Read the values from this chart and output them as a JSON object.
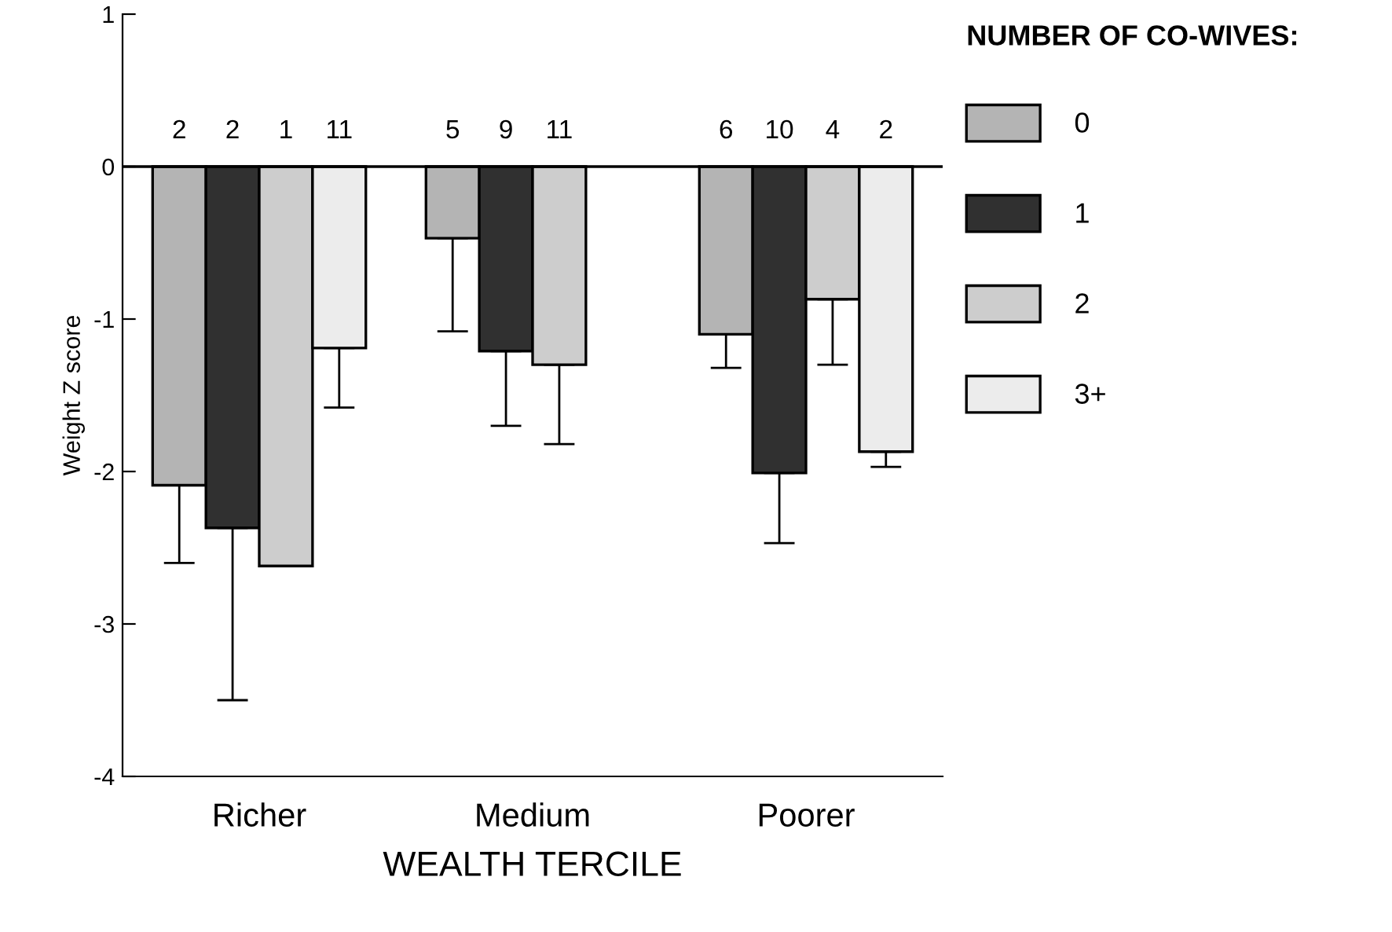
{
  "chart_data": {
    "type": "bar",
    "xlabel": "WEALTH TERCILE",
    "ylabel": "Weight Z score",
    "legend_title": "NUMBER OF CO-WIVES:",
    "categories": [
      "Richer",
      "Medium",
      "Poorer"
    ],
    "series": [
      {
        "name": "0",
        "color": "#b4b4b4",
        "values": [
          -2.09,
          -0.47,
          -1.1
        ],
        "errors": [
          [
            -2.6,
            -2.09
          ],
          [
            -1.08,
            -0.47
          ],
          [
            -1.32,
            -1.1
          ]
        ]
      },
      {
        "name": "1",
        "color": "#303030",
        "values": [
          -2.37,
          -1.21,
          -2.01
        ],
        "errors": [
          [
            -3.5,
            -2.37
          ],
          [
            -1.7,
            -1.21
          ],
          [
            -2.47,
            -2.01
          ]
        ]
      },
      {
        "name": "2",
        "color": "#cdcdcd",
        "values": [
          -2.62,
          -1.3,
          -0.87
        ],
        "errors": [
          null,
          [
            -1.82,
            -1.3
          ],
          [
            -1.3,
            -0.87
          ]
        ]
      },
      {
        "name": "3+",
        "color": "#ececec",
        "values": [
          -1.19,
          null,
          -1.87
        ],
        "errors": [
          [
            -1.58,
            -1.19
          ],
          null,
          [
            -1.97,
            -1.87
          ]
        ]
      }
    ],
    "annotations": [
      "2",
      "2",
      "1",
      "11",
      "5",
      "9",
      "11",
      "6",
      "10",
      "4",
      "2"
    ],
    "ylim": [
      -4,
      1
    ],
    "yticks": [
      -4,
      -3,
      -2,
      -1,
      0,
      1
    ],
    "ref_lines": [
      {
        "axis": "y",
        "value": 0
      }
    ],
    "grid": false,
    "legend": "right"
  }
}
